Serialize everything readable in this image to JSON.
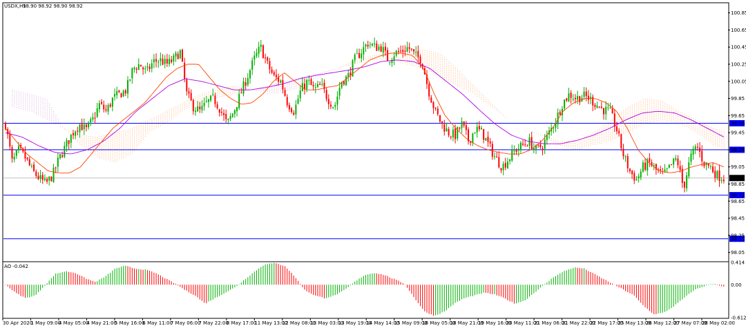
{
  "colors": {
    "bull": "#00b000",
    "bear": "#ff0000",
    "ma_fast": "#ff4500",
    "ma_slow": "#b000e0",
    "cloud_a": "#ffb078",
    "cloud_b": "#d8a8d8",
    "level_line": "#0000ff",
    "current_line": "#c0c0c0",
    "ao_up": "#00b000",
    "ao_down": "#ff0000"
  },
  "chart_data": [
    {
      "type": "candlestick",
      "symbol_label": "USDX,H1",
      "ohlc_label": "98.90 98.92 98.90 98.92",
      "ylim": [
        97.95,
        100.96
      ],
      "y_ticks": [
        "100.85",
        "100.65",
        "100.45",
        "100.25",
        "100.05",
        "99.85",
        "99.65",
        "99.45",
        "99.25",
        "99.05",
        "98.85",
        "98.65",
        "98.45",
        "98.25",
        "98.05"
      ],
      "x_labels": [
        "30 Apr 2020",
        "1 May 09:00",
        "4 May 05:00",
        "4 May 21:00",
        "5 May 16:00",
        "6 May 11:00",
        "7 May 06:00",
        "7 May 22:00",
        "8 May 17:00",
        "11 May 13:00",
        "12 May 08:00",
        "13 May 03:00",
        "13 May 19:00",
        "14 May 14:00",
        "15 May 09:00",
        "18 May 05:00",
        "18 May 21:00",
        "19 May 16:00",
        "20 May 11:00",
        "21 May 06:00",
        "21 May 22:00",
        "22 May 17:00",
        "25 May 13:00",
        "26 May 12:00",
        "27 May 07:00",
        "28 May 02:00"
      ],
      "current_price": "98.92",
      "levels": [
        {
          "label": "99.56",
          "value": 99.56
        },
        {
          "label": "99.25",
          "value": 99.25
        },
        {
          "label": "98.72",
          "value": 98.72
        },
        {
          "label": "98.21",
          "value": 98.21
        }
      ],
      "close_path": [
        99.55,
        99.1,
        99.25,
        99.15,
        99.0,
        98.92,
        98.85,
        98.95,
        99.15,
        99.3,
        99.45,
        99.55,
        99.48,
        99.6,
        99.78,
        99.7,
        99.85,
        99.9,
        99.95,
        100.2,
        100.25,
        100.15,
        100.28,
        100.3,
        100.25,
        100.3,
        100.4,
        99.9,
        99.75,
        99.7,
        99.8,
        99.85,
        99.72,
        99.55,
        99.7,
        99.9,
        100.1,
        100.3,
        100.45,
        100.25,
        100.1,
        100.05,
        99.8,
        99.7,
        99.95,
        100.05,
        99.95,
        100.0,
        99.85,
        99.75,
        100.05,
        100.1,
        100.3,
        100.4,
        100.5,
        100.45,
        100.45,
        100.3,
        100.38,
        100.4,
        100.45,
        100.35,
        100.3,
        99.95,
        99.7,
        99.55,
        99.45,
        99.42,
        99.55,
        99.35,
        99.5,
        99.45,
        99.3,
        99.15,
        99.05,
        99.15,
        99.25,
        99.3,
        99.35,
        99.25,
        99.3,
        99.45,
        99.6,
        99.8,
        99.9,
        99.85,
        99.88,
        99.85,
        99.78,
        99.72,
        99.7,
        99.5,
        99.2,
        99.0,
        98.9,
        99.05,
        99.1,
        99.0,
        98.95,
        99.05,
        99.15,
        98.8,
        99.15,
        99.3,
        99.1,
        99.05,
        98.95,
        98.92
      ],
      "ma_fast_path": [
        99.5,
        99.35,
        99.2,
        99.1,
        99.0,
        98.98,
        98.98,
        99.05,
        99.2,
        99.35,
        99.5,
        99.6,
        99.7,
        99.8,
        99.95,
        100.1,
        100.2,
        100.25,
        100.25,
        100.1,
        99.95,
        99.85,
        99.78,
        99.8,
        99.9,
        100.05,
        100.15,
        100.05,
        99.95,
        99.95,
        99.98,
        100.0,
        100.1,
        100.2,
        100.3,
        100.35,
        100.38,
        100.38,
        100.35,
        100.2,
        99.9,
        99.65,
        99.5,
        99.38,
        99.3,
        99.25,
        99.22,
        99.2,
        99.2,
        99.25,
        99.35,
        99.5,
        99.7,
        99.8,
        99.85,
        99.85,
        99.8,
        99.7,
        99.5,
        99.25,
        99.1,
        99.0,
        98.98,
        99.0,
        99.05,
        99.08,
        99.1,
        99.05
      ],
      "ma_slow_path": [
        99.45,
        99.4,
        99.3,
        99.22,
        99.2,
        99.25,
        99.35,
        99.5,
        99.7,
        99.85,
        100.0,
        100.08,
        100.05,
        100.0,
        99.95,
        99.95,
        99.98,
        100.02,
        100.08,
        100.12,
        100.15,
        100.18,
        100.22,
        100.28,
        100.3,
        100.28,
        100.2,
        100.05,
        99.9,
        99.72,
        99.55,
        99.42,
        99.35,
        99.32,
        99.32,
        99.36,
        99.42,
        99.5,
        99.6,
        99.68,
        99.7,
        99.68,
        99.6,
        99.5,
        99.4
      ],
      "cloud_a_path": [
        99.75,
        99.7,
        99.6,
        99.5,
        99.42,
        99.4,
        99.45,
        99.5,
        99.6,
        99.7,
        99.8,
        99.9,
        99.95,
        100.0,
        99.95,
        99.9,
        99.92,
        100.0,
        100.1,
        100.2,
        100.3,
        100.35,
        100.38,
        100.4,
        100.42,
        100.38,
        100.2,
        100.0,
        99.8,
        99.6,
        99.5,
        99.42,
        99.35,
        99.35,
        99.45,
        99.6,
        99.75,
        99.85,
        99.82,
        99.7,
        99.6,
        99.5,
        99.45
      ],
      "cloud_b_path": [
        99.95,
        99.9,
        99.85,
        99.5,
        99.3,
        99.15,
        99.1,
        99.2,
        99.45,
        99.55,
        99.7,
        99.8,
        99.85,
        99.9,
        99.95,
        100.0,
        100.05,
        100.1,
        100.15,
        100.2,
        100.25,
        100.3,
        100.3,
        100.25,
        100.2,
        100.1,
        100.0,
        99.9,
        99.75,
        99.6,
        99.5,
        99.4,
        99.3,
        99.25,
        99.3,
        99.35,
        99.45,
        99.55,
        99.6,
        99.55,
        99.45,
        99.3,
        99.25
      ]
    },
    {
      "type": "bar",
      "indicator_label": "AO -0.042",
      "ylim": [
        -0.612,
        0.414
      ],
      "y_ticks": [
        "0.414",
        "0.00",
        "-0.612"
      ],
      "wave_path": [
        0.0,
        -0.15,
        -0.25,
        -0.2,
        0.0,
        0.2,
        0.25,
        0.22,
        0.12,
        0.05,
        0.15,
        0.3,
        0.35,
        0.3,
        0.28,
        0.22,
        0.12,
        0.02,
        -0.1,
        -0.2,
        -0.35,
        -0.25,
        -0.15,
        -0.05,
        0.1,
        0.25,
        0.38,
        0.4,
        0.35,
        0.15,
        -0.1,
        -0.2,
        -0.25,
        -0.2,
        -0.1,
        0.05,
        0.18,
        0.22,
        0.18,
        0.1,
        0.02,
        -0.25,
        -0.5,
        -0.58,
        -0.5,
        -0.35,
        -0.25,
        -0.2,
        -0.15,
        -0.18,
        -0.25,
        -0.35,
        -0.3,
        -0.15,
        0.0,
        0.15,
        0.25,
        0.32,
        0.3,
        0.2,
        0.1,
        0.0,
        -0.1,
        -0.2,
        -0.4,
        -0.55,
        -0.52,
        -0.4,
        -0.25,
        -0.1,
        -0.03,
        0.02,
        -0.04
      ]
    }
  ]
}
